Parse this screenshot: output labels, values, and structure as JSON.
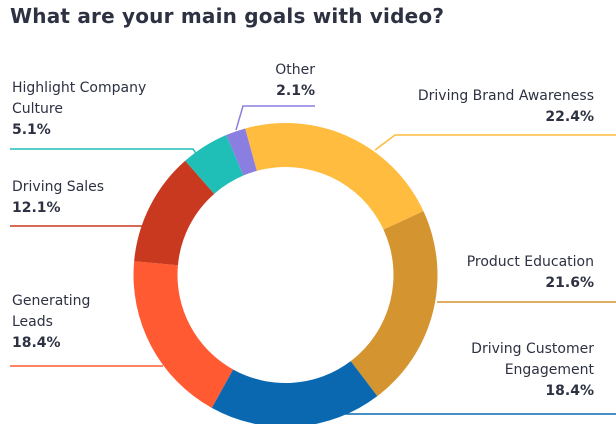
{
  "chart_data": {
    "type": "pie",
    "donut": true,
    "title": "What are your main goals with video?",
    "slices": [
      {
        "label": "Driving Brand Awareness",
        "value": 22.4,
        "value_label": "22.4%",
        "color": "#ffbc3f"
      },
      {
        "label": "Product Education",
        "value": 21.6,
        "value_label": "21.6%",
        "color": "#d4942f"
      },
      {
        "label": "Driving Customer Engagement",
        "value": 18.4,
        "value_label": "18.4%",
        "color": "#0a68b0"
      },
      {
        "label": "Generating Leads",
        "value": 18.4,
        "value_label": "18.4%",
        "color": "#ff5a32"
      },
      {
        "label": "Driving Sales",
        "value": 12.1,
        "value_label": "12.1%",
        "color": "#c8391f"
      },
      {
        "label": "Highlight Company Culture",
        "value": 5.1,
        "value_label": "5.1%",
        "color": "#1fbfb8"
      },
      {
        "label": "Other",
        "value": 2.1,
        "value_label": "2.1%",
        "color": "#8a7fe0"
      }
    ],
    "legend": "leader-line labels around donut"
  }
}
